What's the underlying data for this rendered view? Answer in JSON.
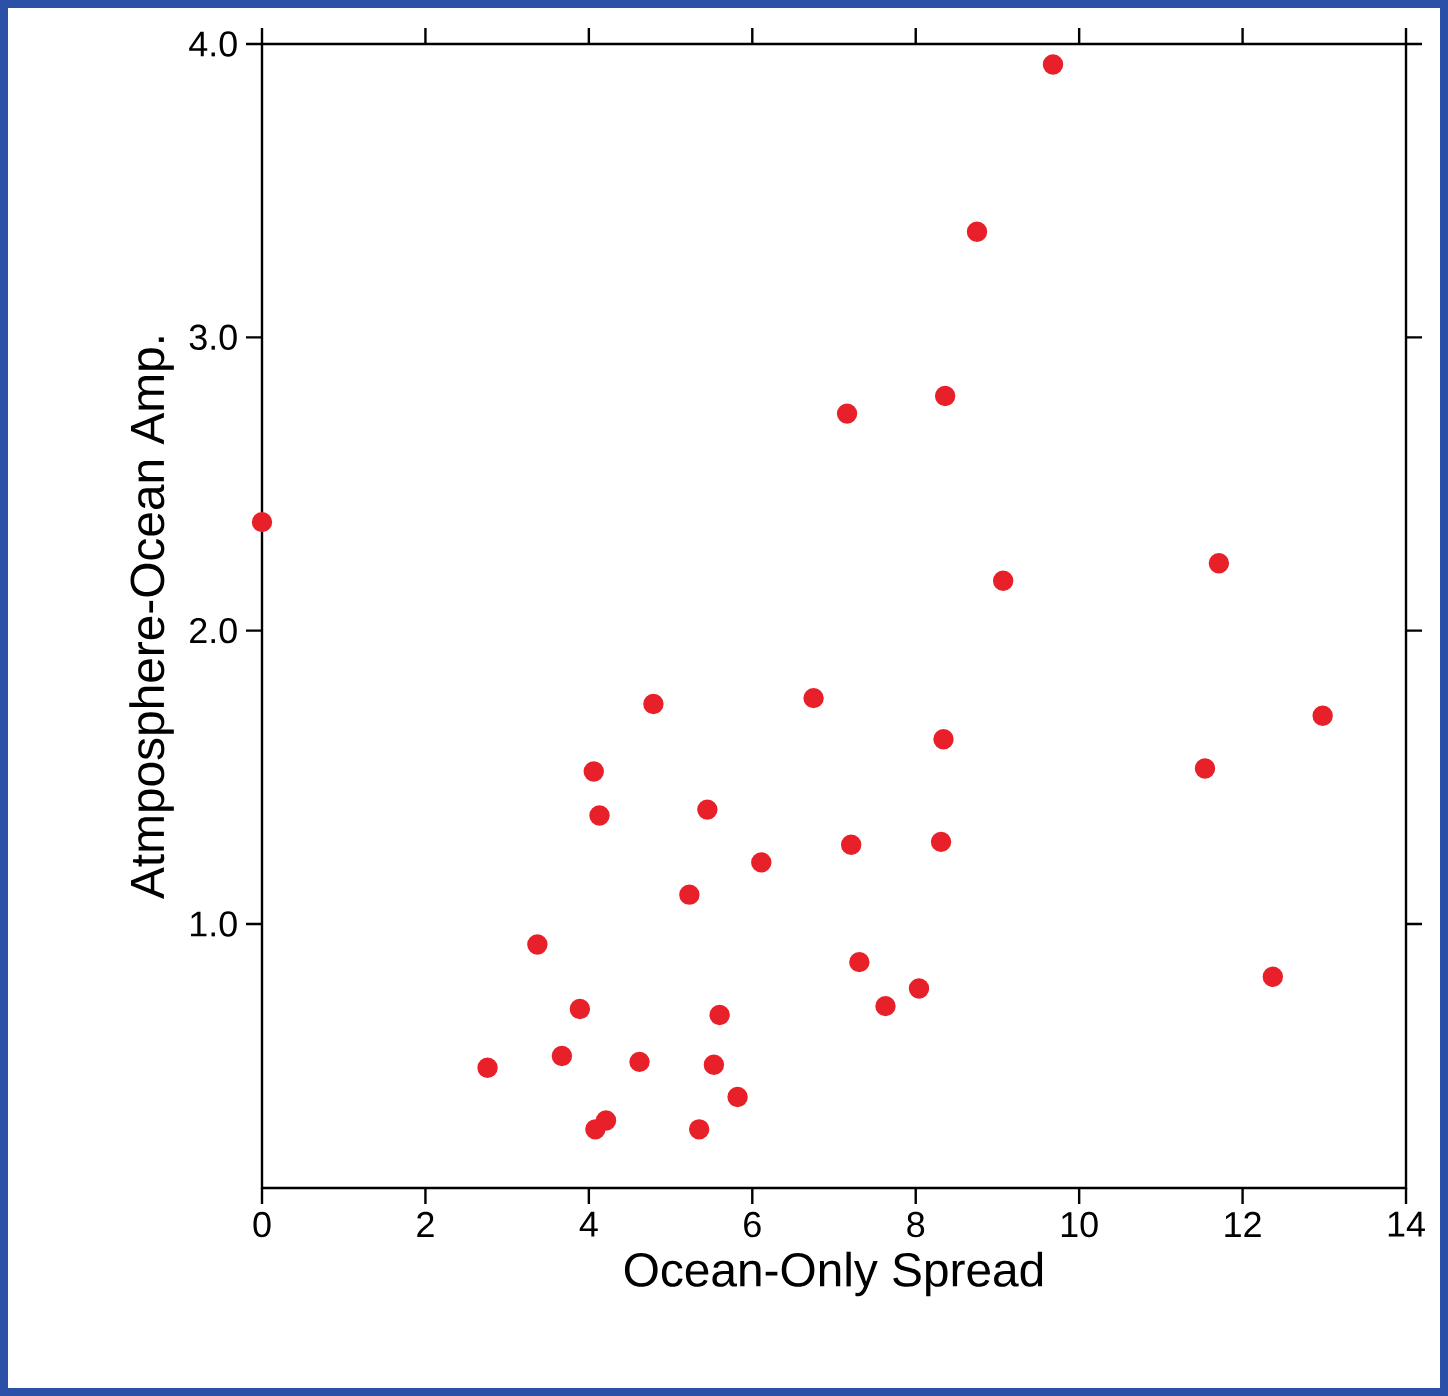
{
  "chart_data": {
    "type": "scatter",
    "xlabel": "Ocean-Only Spread",
    "ylabel": "Atmposphere-Ocean Amp.",
    "x": [
      0,
      9.68,
      8.75,
      7.16,
      8.36,
      9.07,
      11.71,
      12.98,
      4.79,
      6.75,
      4.06,
      11.54,
      4.13,
      5.45,
      8.34,
      6.11,
      7.21,
      8.31,
      5.23,
      3.37,
      7.31,
      12.37,
      3.89,
      5.6,
      7.63,
      8.04,
      2.76,
      3.67,
      4.62,
      5.53,
      5.82,
      4.21,
      4.08,
      5.35
    ],
    "values": [
      2.37,
      3.93,
      3.36,
      2.74,
      2.8,
      2.17,
      2.23,
      1.71,
      1.75,
      1.77,
      1.52,
      1.53,
      1.37,
      1.39,
      1.63,
      1.21,
      1.27,
      1.28,
      1.1,
      0.93,
      0.87,
      0.82,
      0.71,
      0.69,
      0.72,
      0.78,
      0.51,
      0.55,
      0.53,
      0.52,
      0.41,
      0.33,
      0.3,
      0.3
    ],
    "color": "#e8202a",
    "marker": "circle",
    "xlim": [
      0,
      14
    ],
    "ylim": [
      0.1,
      4.0
    ],
    "xticks": [
      0,
      2,
      4,
      6,
      8,
      10,
      12,
      14
    ],
    "yticks": [
      {
        "value": 1,
        "label": "1.0"
      },
      {
        "value": 2,
        "label": "2.0"
      },
      {
        "value": 3,
        "label": "3.0"
      },
      {
        "value": 4,
        "label": "4.0"
      }
    ]
  }
}
